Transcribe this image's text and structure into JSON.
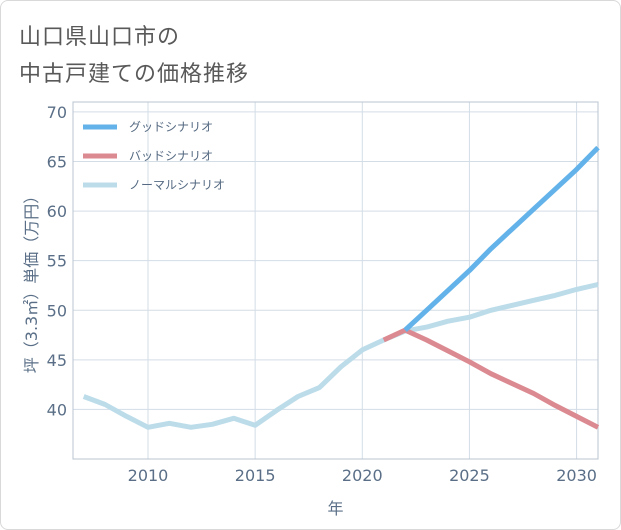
{
  "title_line1": "山口県山口市の",
  "title_line2": "中古戸建ての価格推移",
  "chart_data": {
    "type": "line",
    "xlabel": "年",
    "ylabel": "坪（3.3㎡）単価（万円）",
    "xlim": [
      2006.5,
      2031
    ],
    "ylim": [
      35,
      71
    ],
    "x_ticks": [
      2010,
      2015,
      2020,
      2025,
      2030
    ],
    "y_ticks": [
      40,
      45,
      50,
      55,
      60,
      65,
      70
    ],
    "grid": true,
    "legend_position": "top-left",
    "series": [
      {
        "name": "グッドシナリオ",
        "color": "#63b3ea",
        "x": [
          2022,
          2023,
          2024,
          2025,
          2026,
          2027,
          2028,
          2029,
          2030,
          2031
        ],
        "values": [
          48.0,
          50.0,
          52.0,
          54.0,
          56.2,
          58.2,
          60.2,
          62.2,
          64.2,
          66.4
        ]
      },
      {
        "name": "バッドシナリオ",
        "color": "#dc8a91",
        "x": [
          2021,
          2022,
          2023,
          2024,
          2025,
          2026,
          2027,
          2028,
          2029,
          2030,
          2031
        ],
        "values": [
          47.0,
          48.0,
          47.0,
          45.9,
          44.8,
          43.6,
          42.6,
          41.6,
          40.4,
          39.3,
          38.2
        ]
      },
      {
        "name": "ノーマルシナリオ",
        "color": "#bcdcea",
        "x": [
          2007,
          2008,
          2009,
          2010,
          2011,
          2012,
          2013,
          2014,
          2015,
          2016,
          2017,
          2018,
          2019,
          2020,
          2021,
          2022,
          2023,
          2024,
          2025,
          2026,
          2027,
          2028,
          2029,
          2030,
          2031
        ],
        "values": [
          41.3,
          40.5,
          39.3,
          38.2,
          38.6,
          38.2,
          38.5,
          39.1,
          38.4,
          39.9,
          41.3,
          42.2,
          44.3,
          46.0,
          47.0,
          47.9,
          48.3,
          48.9,
          49.3,
          50.0,
          50.5,
          51.0,
          51.5,
          52.1,
          52.6
        ]
      }
    ]
  }
}
